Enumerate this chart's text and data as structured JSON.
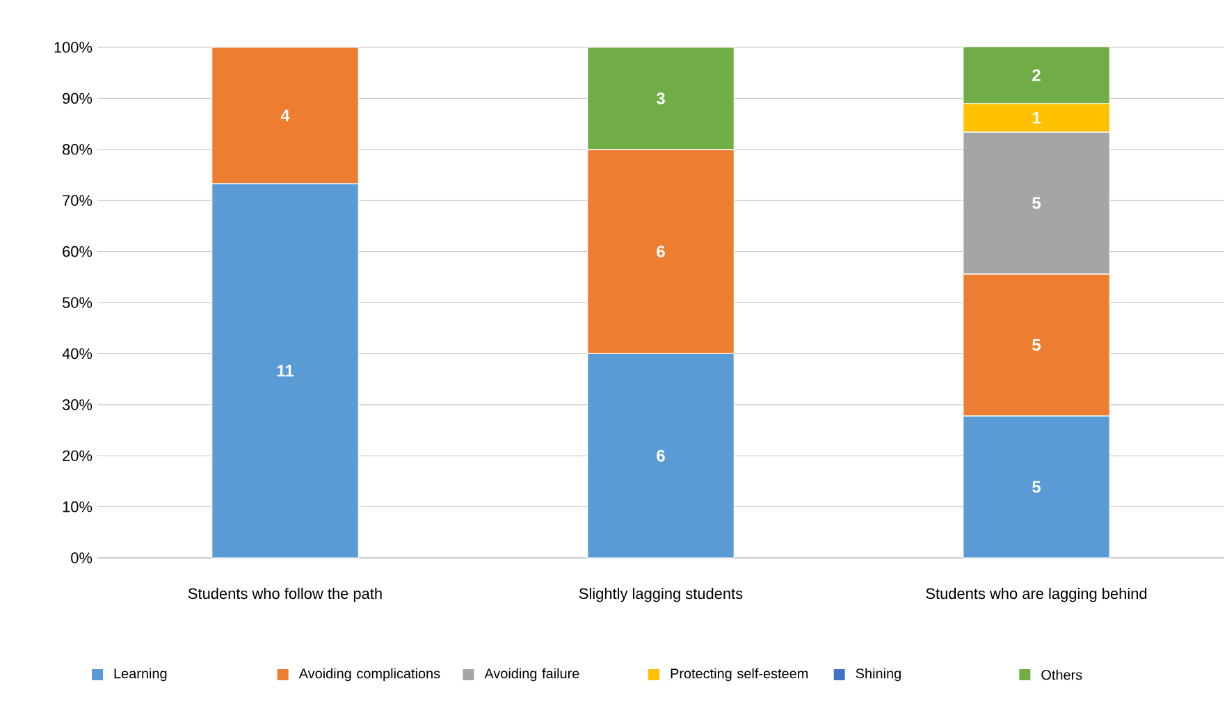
{
  "chart_data": {
    "type": "bar",
    "stacked": true,
    "categories": [
      "Students who follow the path",
      "Slightly lagging students",
      "Students who are lagging behind"
    ],
    "series": [
      {
        "name": "Learning",
        "color": "#5b9bd5",
        "values": [
          73.3,
          40,
          27.8
        ]
      },
      {
        "name": "Avoiding complications",
        "color": "#ed7d31",
        "values": [
          26.7,
          40,
          27.8
        ]
      },
      {
        "name": "Avoiding failure",
        "color": "#a5a5a5",
        "values": [
          null,
          null,
          27.8
        ]
      },
      {
        "name": "Protecting self-esteem",
        "color": "#ffc000",
        "values": [
          null,
          null,
          5.6
        ]
      },
      {
        "name": "Shining",
        "color": "#4472c4",
        "values": [
          null,
          null,
          null
        ]
      },
      {
        "name": "Others",
        "color": "#70ad47",
        "values": [
          null,
          20,
          11.1
        ]
      }
    ],
    "annotations": [
      "11",
      "4",
      "6",
      "6",
      "3",
      "5",
      "5",
      "5",
      "1",
      "2"
    ],
    "ylim": [
      0,
      100
    ],
    "yticks": [
      {
        "value": 0,
        "label": "0%"
      },
      {
        "value": 10,
        "label": "10%"
      },
      {
        "value": 20,
        "label": "20%"
      },
      {
        "value": 30,
        "label": "30%"
      },
      {
        "value": 40,
        "label": "40%"
      },
      {
        "value": 50,
        "label": "50%"
      },
      {
        "value": 60,
        "label": "60%"
      },
      {
        "value": 70,
        "label": "70%"
      },
      {
        "value": 80,
        "label": "80%"
      },
      {
        "value": 90,
        "label": "90%"
      },
      {
        "value": 100,
        "label": "100%"
      }
    ],
    "grid": "y",
    "legend": "bottom"
  }
}
